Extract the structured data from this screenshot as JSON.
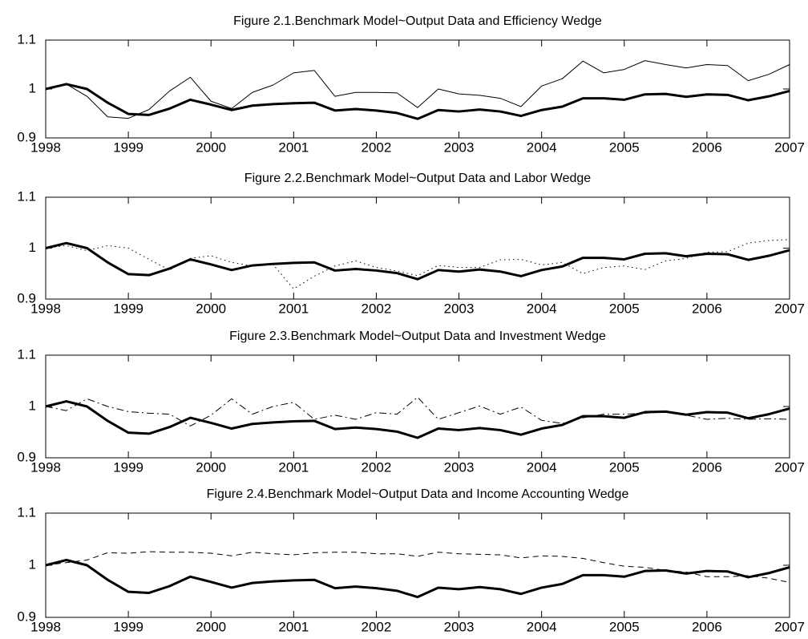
{
  "chart_data": [
    {
      "type": "line",
      "title": "Figure 2.1.Benchmark Model~Output Data and Efficiency Wedge",
      "x": [
        1998,
        1998.25,
        1998.5,
        1998.75,
        1999,
        1999.25,
        1999.5,
        1999.75,
        2000,
        2000.25,
        2000.5,
        2000.75,
        2001,
        2001.25,
        2001.5,
        2001.75,
        2002,
        2002.25,
        2002.5,
        2002.75,
        2003,
        2003.25,
        2003.5,
        2003.75,
        2004,
        2004.25,
        2004.5,
        2004.75,
        2005,
        2005.25,
        2005.5,
        2005.75,
        2006,
        2006.25,
        2006.5,
        2006.75,
        2007
      ],
      "series": [
        {
          "color": "#000000",
          "line_style": "solid",
          "line_width": 3,
          "values": [
            1.0,
            1.01,
            1.0,
            0.972,
            0.949,
            0.947,
            0.96,
            0.978,
            0.968,
            0.957,
            0.966,
            0.969,
            0.971,
            0.972,
            0.956,
            0.959,
            0.956,
            0.951,
            0.939,
            0.957,
            0.954,
            0.958,
            0.954,
            0.945,
            0.957,
            0.964,
            0.981,
            0.981,
            0.978,
            0.989,
            0.99,
            0.984,
            0.989,
            0.988,
            0.977,
            0.985,
            0.996
          ]
        },
        {
          "color": "#000000",
          "line_style": "solid",
          "line_width": 1,
          "values": [
            1.0,
            1.01,
            0.985,
            0.943,
            0.94,
            0.958,
            0.996,
            1.024,
            0.975,
            0.96,
            0.993,
            1.008,
            1.033,
            1.038,
            0.985,
            0.993,
            0.993,
            0.992,
            0.962,
            1.0,
            0.99,
            0.987,
            0.981,
            0.964,
            1.006,
            1.021,
            1.057,
            1.033,
            1.04,
            1.058,
            1.05,
            1.043,
            1.05,
            1.048,
            1.017,
            1.03,
            1.05
          ]
        }
      ],
      "xlim": [
        1998,
        2007
      ],
      "xticks": [
        1998,
        1999,
        2000,
        2001,
        2002,
        2003,
        2004,
        2005,
        2006,
        2007
      ],
      "ylim": [
        0.9,
        1.1
      ],
      "yticks": [
        0.9,
        1,
        1.1
      ],
      "grid": false
    },
    {
      "type": "line",
      "title": "Figure 2.2.Benchmark Model~Output Data and Labor Wedge",
      "x": [
        1998,
        1998.25,
        1998.5,
        1998.75,
        1999,
        1999.25,
        1999.5,
        1999.75,
        2000,
        2000.25,
        2000.5,
        2000.75,
        2001,
        2001.25,
        2001.5,
        2001.75,
        2002,
        2002.25,
        2002.5,
        2002.75,
        2003,
        2003.25,
        2003.5,
        2003.75,
        2004,
        2004.25,
        2004.5,
        2004.75,
        2005,
        2005.25,
        2005.5,
        2005.75,
        2006,
        2006.25,
        2006.5,
        2006.75,
        2007
      ],
      "series": [
        {
          "color": "#000000",
          "line_style": "solid",
          "line_width": 3,
          "values": [
            1.0,
            1.01,
            1.0,
            0.972,
            0.949,
            0.947,
            0.96,
            0.978,
            0.968,
            0.957,
            0.966,
            0.969,
            0.971,
            0.972,
            0.956,
            0.959,
            0.956,
            0.951,
            0.939,
            0.957,
            0.954,
            0.958,
            0.954,
            0.945,
            0.957,
            0.964,
            0.981,
            0.981,
            0.978,
            0.989,
            0.99,
            0.984,
            0.989,
            0.988,
            0.977,
            0.985,
            0.996
          ]
        },
        {
          "color": "#000000",
          "line_style": "dotted",
          "line_width": 1,
          "values": [
            1.0,
            1.005,
            0.995,
            1.005,
            1.0,
            0.978,
            0.957,
            0.98,
            0.985,
            0.972,
            0.965,
            0.968,
            0.92,
            0.945,
            0.965,
            0.975,
            0.962,
            0.955,
            0.946,
            0.966,
            0.962,
            0.962,
            0.977,
            0.978,
            0.967,
            0.972,
            0.95,
            0.962,
            0.965,
            0.958,
            0.975,
            0.98,
            0.992,
            0.993,
            1.01,
            1.015,
            1.017
          ]
        }
      ],
      "xlim": [
        1998,
        2007
      ],
      "xticks": [
        1998,
        1999,
        2000,
        2001,
        2002,
        2003,
        2004,
        2005,
        2006,
        2007
      ],
      "ylim": [
        0.9,
        1.1
      ],
      "yticks": [
        0.9,
        1,
        1.1
      ],
      "grid": false
    },
    {
      "type": "line",
      "title": "Figure 2.3.Benchmark Model~Output Data and Investment Wedge",
      "x": [
        1998,
        1998.25,
        1998.5,
        1998.75,
        1999,
        1999.25,
        1999.5,
        1999.75,
        2000,
        2000.25,
        2000.5,
        2000.75,
        2001,
        2001.25,
        2001.5,
        2001.75,
        2002,
        2002.25,
        2002.5,
        2002.75,
        2003,
        2003.25,
        2003.5,
        2003.75,
        2004,
        2004.25,
        2004.5,
        2004.75,
        2005,
        2005.25,
        2005.5,
        2005.75,
        2006,
        2006.25,
        2006.5,
        2006.75,
        2007
      ],
      "series": [
        {
          "color": "#000000",
          "line_style": "solid",
          "line_width": 3,
          "values": [
            1.0,
            1.01,
            1.0,
            0.972,
            0.949,
            0.947,
            0.96,
            0.978,
            0.968,
            0.957,
            0.966,
            0.969,
            0.971,
            0.972,
            0.956,
            0.959,
            0.956,
            0.951,
            0.939,
            0.957,
            0.954,
            0.958,
            0.954,
            0.945,
            0.957,
            0.964,
            0.981,
            0.981,
            0.978,
            0.989,
            0.99,
            0.984,
            0.989,
            0.988,
            0.977,
            0.985,
            0.996
          ]
        },
        {
          "color": "#000000",
          "line_style": "dashdot",
          "line_width": 1,
          "values": [
            1.0,
            0.992,
            1.015,
            1.0,
            0.99,
            0.987,
            0.985,
            0.962,
            0.983,
            1.015,
            0.985,
            1.0,
            1.008,
            0.975,
            0.983,
            0.975,
            0.988,
            0.985,
            1.018,
            0.975,
            0.988,
            1.001,
            0.985,
            0.999,
            0.973,
            0.967,
            0.978,
            0.985,
            0.985,
            0.987,
            0.989,
            0.983,
            0.975,
            0.977,
            0.975,
            0.976,
            0.975
          ]
        }
      ],
      "xlim": [
        1998,
        2007
      ],
      "xticks": [
        1998,
        1999,
        2000,
        2001,
        2002,
        2003,
        2004,
        2005,
        2006,
        2007
      ],
      "ylim": [
        0.9,
        1.1
      ],
      "yticks": [
        0.9,
        1,
        1.1
      ],
      "grid": false
    },
    {
      "type": "line",
      "title": "Figure 2.4.Benchmark Model~Output Data and Income Accounting Wedge",
      "x": [
        1998,
        1998.25,
        1998.5,
        1998.75,
        1999,
        1999.25,
        1999.5,
        1999.75,
        2000,
        2000.25,
        2000.5,
        2000.75,
        2001,
        2001.25,
        2001.5,
        2001.75,
        2002,
        2002.25,
        2002.5,
        2002.75,
        2003,
        2003.25,
        2003.5,
        2003.75,
        2004,
        2004.25,
        2004.5,
        2004.75,
        2005,
        2005.25,
        2005.5,
        2005.75,
        2006,
        2006.25,
        2006.5,
        2006.75,
        2007
      ],
      "series": [
        {
          "color": "#000000",
          "line_style": "solid",
          "line_width": 3,
          "values": [
            1.0,
            1.01,
            1.0,
            0.972,
            0.949,
            0.947,
            0.96,
            0.978,
            0.968,
            0.957,
            0.966,
            0.969,
            0.971,
            0.972,
            0.956,
            0.959,
            0.956,
            0.951,
            0.939,
            0.957,
            0.954,
            0.958,
            0.954,
            0.945,
            0.957,
            0.964,
            0.981,
            0.981,
            0.978,
            0.989,
            0.99,
            0.984,
            0.989,
            0.988,
            0.977,
            0.985,
            0.996
          ]
        },
        {
          "color": "#000000",
          "line_style": "dashed",
          "line_width": 1,
          "values": [
            1.0,
            1.005,
            1.01,
            1.024,
            1.023,
            1.026,
            1.025,
            1.025,
            1.023,
            1.018,
            1.025,
            1.022,
            1.02,
            1.024,
            1.025,
            1.025,
            1.022,
            1.022,
            1.017,
            1.025,
            1.022,
            1.021,
            1.02,
            1.014,
            1.018,
            1.017,
            1.013,
            1.005,
            0.998,
            0.996,
            0.99,
            0.987,
            0.978,
            0.978,
            0.98,
            0.975,
            0.967
          ]
        }
      ],
      "xlim": [
        1998,
        2007
      ],
      "xticks": [
        1998,
        1999,
        2000,
        2001,
        2002,
        2003,
        2004,
        2005,
        2006,
        2007
      ],
      "ylim": [
        0.9,
        1.1
      ],
      "yticks": [
        0.9,
        1,
        1.1
      ],
      "grid": false
    }
  ]
}
